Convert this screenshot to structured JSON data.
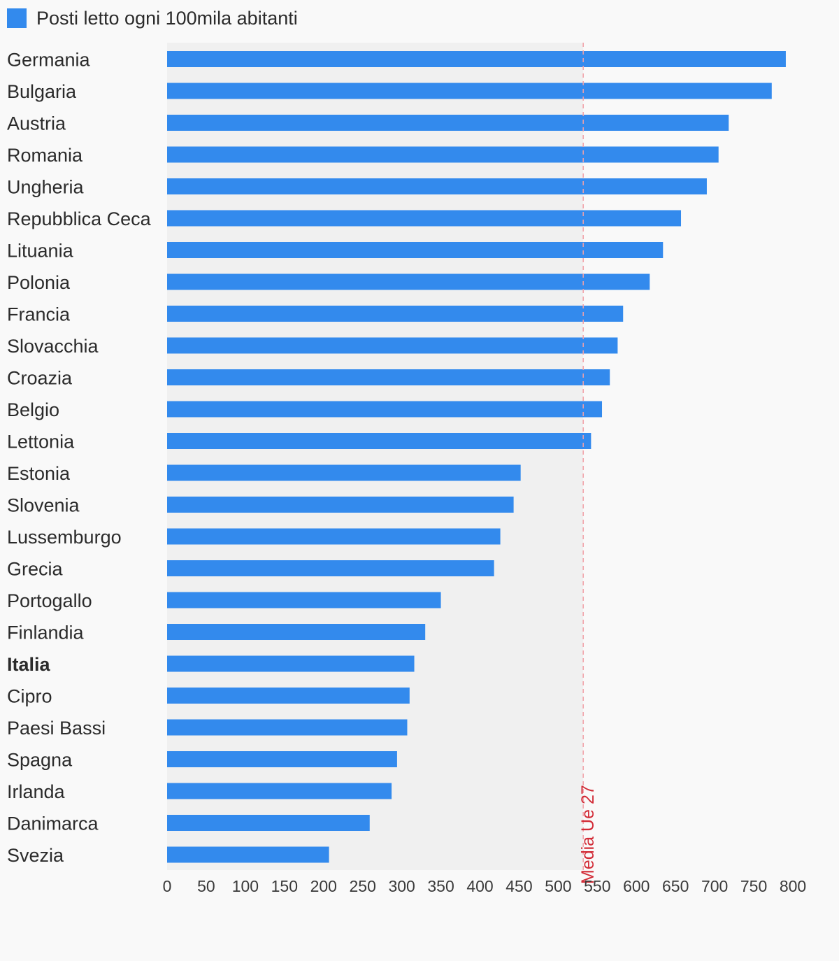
{
  "chart_data": {
    "type": "bar",
    "orientation": "horizontal",
    "legend": {
      "label": "Posti letto ogni 100mila abitanti",
      "placement": "top-left"
    },
    "categories": [
      "Germania",
      "Bulgaria",
      "Austria",
      "Romania",
      "Ungheria",
      "Repubblica Ceca",
      "Lituania",
      "Polonia",
      "Francia",
      "Slovacchia",
      "Croazia",
      "Belgio",
      "Lettonia",
      "Estonia",
      "Slovenia",
      "Lussemburgo",
      "Grecia",
      "Portogallo",
      "Finlandia",
      "Italia",
      "Cipro",
      "Paesi Bassi",
      "Spagna",
      "Irlanda",
      "Danimarca",
      "Svezia"
    ],
    "highlighted_category": "Italia",
    "series": [
      {
        "name": "Posti letto ogni 100mila abitanti",
        "color": "#338aed",
        "values": [
          791,
          773,
          718,
          705,
          690,
          657,
          634,
          617,
          583,
          576,
          566,
          556,
          542,
          452,
          443,
          426,
          418,
          350,
          330,
          316,
          310,
          307,
          294,
          287,
          259,
          207
        ]
      }
    ],
    "reference_line": {
      "label": "Media Ue 27",
      "value": 532,
      "color": "#d22b36"
    },
    "x_ticks": [
      0,
      50,
      100,
      150,
      200,
      250,
      300,
      350,
      400,
      450,
      500,
      550,
      600,
      650,
      700,
      750,
      800
    ],
    "xlim": [
      0,
      800
    ],
    "grid": false,
    "colors": {
      "background": "#f9f9f9",
      "shaded_region": "#f0f0f0"
    }
  }
}
